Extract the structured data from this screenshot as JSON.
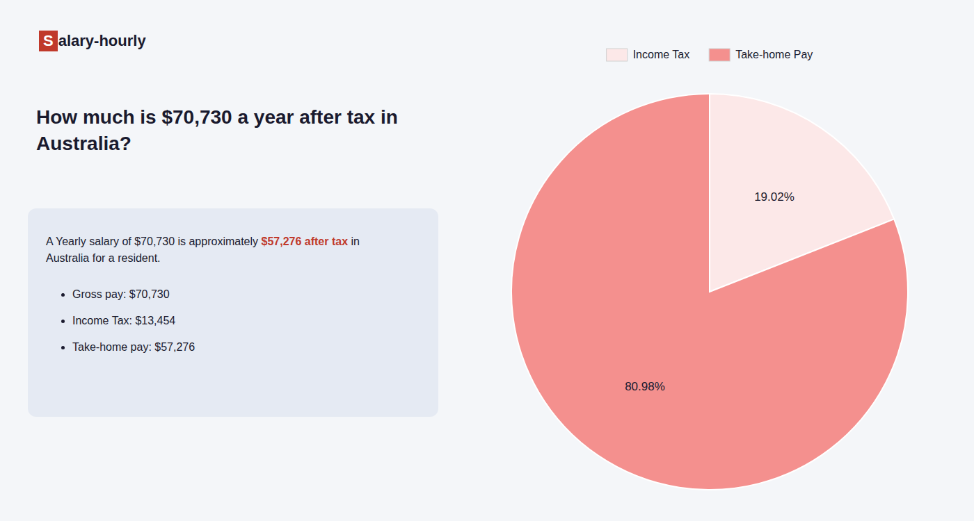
{
  "chart_data": {
    "type": "pie",
    "title": "How much is $70,730 a year after tax in\nAustralia?",
    "annotations": [
      "S",
      "alary-hourly",
      "A Yearly salary of $70,730 is approximately ",
      "$57,276 after tax",
      " in",
      "Australia for a resident.",
      "Gross pay: $70,730",
      "Income Tax: $13,454",
      "Take-home pay: $57,276"
    ],
    "categories": [
      "Income Tax",
      "Take-home Pay"
    ],
    "values": [
      19.02,
      80.98
    ],
    "value_labels": [
      "19.02%",
      "80.98%"
    ],
    "colors": [
      "#fce8e8",
      "#f4908e"
    ],
    "data_labels": true,
    "legend": "top"
  }
}
